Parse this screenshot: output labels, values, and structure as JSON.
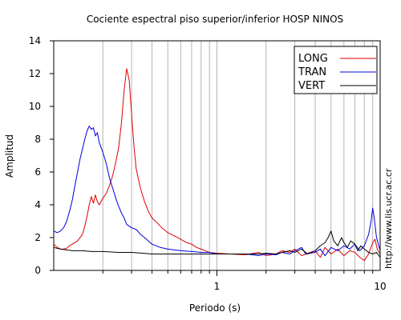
{
  "chart_data": {
    "type": "line",
    "title": "Cociente espectral piso superior/inferior  HOSP NINOS",
    "xlabel": "Periodo (s)",
    "ylabel": "Amplitud",
    "x_scale": "log",
    "xlim": [
      0.1,
      10
    ],
    "ylim": [
      0,
      14
    ],
    "x_ticks": [
      1,
      10
    ],
    "x_tick_labels": [
      "1",
      "10"
    ],
    "y_ticks": [
      0,
      2,
      4,
      6,
      8,
      10,
      12,
      14
    ],
    "y_tick_labels": [
      "0",
      "2",
      "4",
      "6",
      "8",
      "10",
      "12",
      "14"
    ],
    "grid": "vertical",
    "legend_position": "top-right",
    "watermark": "http://www.lis.ucr.ac.cr",
    "series": [
      {
        "name": "LONG",
        "color": "#e00000",
        "points": [
          [
            0.1,
            1.6
          ],
          [
            0.105,
            1.4
          ],
          [
            0.11,
            1.3
          ],
          [
            0.115,
            1.3
          ],
          [
            0.12,
            1.35
          ],
          [
            0.125,
            1.5
          ],
          [
            0.13,
            1.6
          ],
          [
            0.14,
            1.8
          ],
          [
            0.15,
            2.2
          ],
          [
            0.155,
            2.7
          ],
          [
            0.16,
            3.3
          ],
          [
            0.165,
            4.0
          ],
          [
            0.17,
            4.5
          ],
          [
            0.175,
            4.1
          ],
          [
            0.18,
            4.6
          ],
          [
            0.185,
            4.2
          ],
          [
            0.19,
            4.0
          ],
          [
            0.2,
            4.4
          ],
          [
            0.21,
            4.7
          ],
          [
            0.22,
            5.2
          ],
          [
            0.23,
            5.8
          ],
          [
            0.24,
            6.6
          ],
          [
            0.25,
            7.5
          ],
          [
            0.26,
            9.0
          ],
          [
            0.27,
            11.0
          ],
          [
            0.28,
            12.3
          ],
          [
            0.29,
            11.6
          ],
          [
            0.3,
            9.5
          ],
          [
            0.31,
            7.6
          ],
          [
            0.32,
            6.2
          ],
          [
            0.34,
            5.0
          ],
          [
            0.36,
            4.2
          ],
          [
            0.38,
            3.6
          ],
          [
            0.4,
            3.2
          ],
          [
            0.43,
            2.9
          ],
          [
            0.46,
            2.6
          ],
          [
            0.5,
            2.3
          ],
          [
            0.55,
            2.1
          ],
          [
            0.6,
            1.9
          ],
          [
            0.65,
            1.7
          ],
          [
            0.7,
            1.6
          ],
          [
            0.75,
            1.4
          ],
          [
            0.8,
            1.3
          ],
          [
            0.9,
            1.1
          ],
          [
            1.0,
            1.05
          ],
          [
            1.2,
            1.0
          ],
          [
            1.5,
            0.95
          ],
          [
            1.8,
            1.1
          ],
          [
            2.0,
            0.9
          ],
          [
            2.3,
            1.0
          ],
          [
            2.5,
            1.2
          ],
          [
            2.8,
            1.1
          ],
          [
            3.0,
            1.3
          ],
          [
            3.3,
            0.9
          ],
          [
            3.5,
            1.0
          ],
          [
            4.0,
            1.2
          ],
          [
            4.3,
            0.8
          ],
          [
            4.6,
            1.4
          ],
          [
            5.0,
            1.0
          ],
          [
            5.5,
            1.3
          ],
          [
            6.0,
            0.9
          ],
          [
            6.5,
            1.2
          ],
          [
            7.0,
            1.1
          ],
          [
            7.5,
            0.8
          ],
          [
            8.0,
            0.6
          ],
          [
            8.5,
            1.0
          ],
          [
            9.0,
            1.7
          ],
          [
            9.3,
            1.9
          ],
          [
            9.6,
            1.3
          ],
          [
            10.0,
            1.0
          ]
        ]
      },
      {
        "name": "TRAN",
        "color": "#0000e0",
        "points": [
          [
            0.1,
            2.4
          ],
          [
            0.105,
            2.3
          ],
          [
            0.11,
            2.4
          ],
          [
            0.115,
            2.6
          ],
          [
            0.12,
            3.0
          ],
          [
            0.125,
            3.6
          ],
          [
            0.13,
            4.3
          ],
          [
            0.135,
            5.2
          ],
          [
            0.14,
            6.0
          ],
          [
            0.145,
            6.8
          ],
          [
            0.15,
            7.4
          ],
          [
            0.155,
            8.0
          ],
          [
            0.16,
            8.5
          ],
          [
            0.165,
            8.8
          ],
          [
            0.17,
            8.6
          ],
          [
            0.175,
            8.7
          ],
          [
            0.18,
            8.2
          ],
          [
            0.185,
            8.4
          ],
          [
            0.19,
            7.8
          ],
          [
            0.2,
            7.2
          ],
          [
            0.21,
            6.5
          ],
          [
            0.22,
            5.6
          ],
          [
            0.23,
            5.0
          ],
          [
            0.24,
            4.4
          ],
          [
            0.25,
            3.9
          ],
          [
            0.26,
            3.5
          ],
          [
            0.27,
            3.2
          ],
          [
            0.28,
            2.8
          ],
          [
            0.3,
            2.6
          ],
          [
            0.32,
            2.5
          ],
          [
            0.34,
            2.2
          ],
          [
            0.36,
            2.0
          ],
          [
            0.38,
            1.8
          ],
          [
            0.4,
            1.6
          ],
          [
            0.45,
            1.4
          ],
          [
            0.5,
            1.3
          ],
          [
            0.55,
            1.25
          ],
          [
            0.6,
            1.2
          ],
          [
            0.7,
            1.15
          ],
          [
            0.8,
            1.1
          ],
          [
            0.9,
            1.1
          ],
          [
            1.0,
            1.0
          ],
          [
            1.2,
            1.0
          ],
          [
            1.5,
            1.0
          ],
          [
            1.8,
            0.9
          ],
          [
            2.0,
            1.0
          ],
          [
            2.3,
            0.95
          ],
          [
            2.5,
            1.1
          ],
          [
            2.8,
            1.0
          ],
          [
            3.0,
            1.2
          ],
          [
            3.3,
            1.4
          ],
          [
            3.5,
            1.0
          ],
          [
            4.0,
            1.1
          ],
          [
            4.3,
            1.3
          ],
          [
            4.6,
            0.9
          ],
          [
            5.0,
            1.4
          ],
          [
            5.5,
            1.2
          ],
          [
            6.0,
            1.5
          ],
          [
            6.5,
            1.3
          ],
          [
            7.0,
            1.6
          ],
          [
            7.5,
            1.2
          ],
          [
            8.0,
            1.5
          ],
          [
            8.5,
            2.2
          ],
          [
            8.8,
            3.0
          ],
          [
            9.0,
            3.8
          ],
          [
            9.2,
            3.2
          ],
          [
            9.5,
            2.0
          ],
          [
            10.0,
            1.2
          ]
        ]
      },
      {
        "name": "VERT",
        "color": "#000000",
        "points": [
          [
            0.1,
            1.4
          ],
          [
            0.11,
            1.3
          ],
          [
            0.12,
            1.25
          ],
          [
            0.13,
            1.2
          ],
          [
            0.15,
            1.2
          ],
          [
            0.17,
            1.15
          ],
          [
            0.2,
            1.15
          ],
          [
            0.25,
            1.1
          ],
          [
            0.3,
            1.1
          ],
          [
            0.35,
            1.05
          ],
          [
            0.4,
            1.0
          ],
          [
            0.5,
            1.0
          ],
          [
            0.6,
            1.0
          ],
          [
            0.7,
            1.0
          ],
          [
            0.8,
            1.0
          ],
          [
            1.0,
            1.0
          ],
          [
            1.2,
            1.0
          ],
          [
            1.5,
            1.0
          ],
          [
            1.8,
            1.0
          ],
          [
            2.0,
            1.05
          ],
          [
            2.3,
            1.0
          ],
          [
            2.5,
            1.1
          ],
          [
            2.8,
            1.2
          ],
          [
            3.0,
            1.1
          ],
          [
            3.3,
            1.3
          ],
          [
            3.6,
            1.0
          ],
          [
            4.0,
            1.2
          ],
          [
            4.3,
            1.5
          ],
          [
            4.6,
            1.7
          ],
          [
            4.8,
            2.0
          ],
          [
            5.0,
            2.4
          ],
          [
            5.2,
            1.8
          ],
          [
            5.5,
            1.5
          ],
          [
            5.8,
            2.0
          ],
          [
            6.0,
            1.7
          ],
          [
            6.3,
            1.4
          ],
          [
            6.6,
            1.8
          ],
          [
            7.0,
            1.6
          ],
          [
            7.3,
            1.2
          ],
          [
            7.6,
            1.5
          ],
          [
            8.0,
            1.3
          ],
          [
            8.5,
            1.1
          ],
          [
            9.0,
            1.0
          ],
          [
            9.5,
            1.1
          ],
          [
            10.0,
            0.8
          ]
        ]
      }
    ]
  }
}
